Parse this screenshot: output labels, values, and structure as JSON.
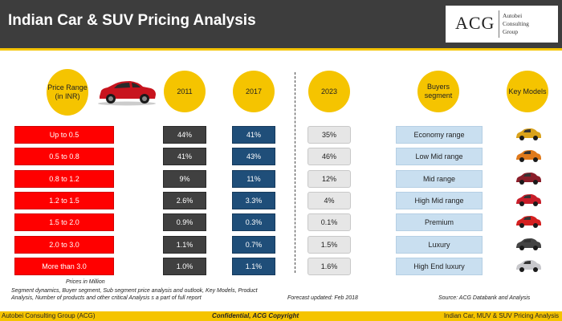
{
  "header": {
    "title": "Indian Car & SUV Pricing Analysis",
    "logo_text": "ACG",
    "logo_sub": [
      "Autobei",
      "Consulting",
      "Group"
    ]
  },
  "columns": {
    "price_range": "Price Range (in INR)",
    "y2011": "2011",
    "y2017": "2017",
    "y2023": "2023",
    "buyers": "Buyers segment",
    "key_models": "Key Models"
  },
  "rows": [
    {
      "range": "Up to 0.5",
      "y2011": "44%",
      "y2017": "41%",
      "y2023": "35%",
      "buyer": "Economy range",
      "car_color": "#d9a21b"
    },
    {
      "range": "0.5 to 0.8",
      "y2011": "41%",
      "y2017": "43%",
      "y2023": "46%",
      "buyer": "Low Mid range",
      "car_color": "#e07a1c"
    },
    {
      "range": "0.8 to 1.2",
      "y2011": "9%",
      "y2017": "11%",
      "y2023": "12%",
      "buyer": "Mid range",
      "car_color": "#8a1e2a"
    },
    {
      "range": "1.2 to 1.5",
      "y2011": "2.6%",
      "y2017": "3.3%",
      "y2023": "4%",
      "buyer": "High Mid range",
      "car_color": "#c81e2a"
    },
    {
      "range": "1.5 to 2.0",
      "y2011": "0.9%",
      "y2017": "0.3%",
      "y2023": "0.1%",
      "buyer": "Premium",
      "car_color": "#d42020"
    },
    {
      "range": "2.0 to 3.0",
      "y2011": "1.1%",
      "y2017": "0.7%",
      "y2023": "1.5%",
      "buyer": "Luxury",
      "car_color": "#444444"
    },
    {
      "range": "More than 3.0",
      "y2011": "1.0%",
      "y2017": "1.1%",
      "y2023": "1.6%",
      "buyer": "High End luxury",
      "car_color": "#c8c8cc"
    }
  ],
  "notes": {
    "prices_in": "Prices in Million",
    "segment_note": "Segment dynamics, Buyer segment, Sub segment price analysis and outlook, Key Models, Product Analysis, Number of products and other critical Analysis s a part of full report",
    "forecast": "Forecast updated: Feb 2018",
    "source": "Source: ACG Databank and Analysis"
  },
  "footer": {
    "left": "Autobei Consulting Group (ACG)",
    "center": "Confidential, ACG Copyright",
    "right": "Indian Car, MUV & SUV Pricing Analysis"
  },
  "colors": {
    "header_bg": "#3d3d3d",
    "accent_yellow": "#f5c400",
    "range_red": "#ff0000",
    "col_2011": "#404040",
    "col_2017": "#1f4e79",
    "col_2023": "#e6e6e6",
    "buyer_blue": "#c9dff0"
  }
}
